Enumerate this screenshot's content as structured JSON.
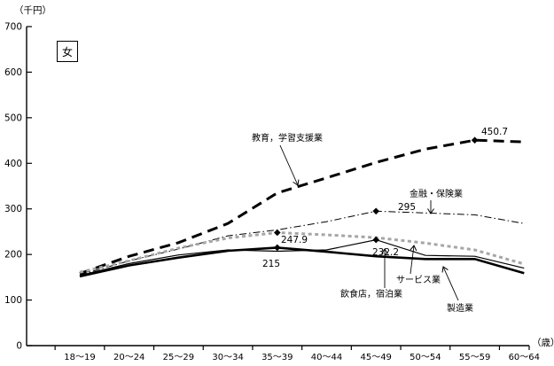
{
  "header": {
    "unit_label": "（千円）",
    "age_unit_label": "（歳）",
    "legend": "女"
  },
  "chart_data": {
    "type": "line",
    "title": "",
    "xlabel": "（歳）",
    "ylabel": "（千円）",
    "ylim": [
      0,
      700
    ],
    "yticks": [
      0,
      100,
      200,
      300,
      400,
      500,
      600,
      700
    ],
    "grid": false,
    "legend_position": "inline-annotations",
    "categories": [
      "18～19",
      "20～24",
      "25～29",
      "30～34",
      "35～39",
      "40～44",
      "45～49",
      "50～54",
      "55～59",
      "60～64"
    ],
    "series": [
      {
        "id": "education",
        "name": "教育，学習支援業",
        "style": "thick-dashed",
        "color": "#000000",
        "values": [
          158,
          196,
          226,
          268,
          335,
          368,
          402,
          431,
          450.7,
          447
        ],
        "peak": {
          "index": 8,
          "label": "450.7",
          "value": 450.7
        }
      },
      {
        "id": "finance",
        "name": "金融・保険業",
        "style": "dash-dot",
        "color": "#000000",
        "values": [
          155,
          186,
          212,
          241,
          254,
          272,
          295,
          291,
          287,
          268
        ],
        "peak": {
          "index": 6,
          "label": "295",
          "value": 295
        }
      },
      {
        "id": "services",
        "name": "サービス業",
        "style": "gray-dotted",
        "color": "#a6a6a6",
        "values": [
          161,
          186,
          214,
          236,
          247.9,
          243,
          237,
          225,
          210,
          179
        ],
        "peak": {
          "index": 4,
          "label": "247.9",
          "value": 247.9
        }
      },
      {
        "id": "restaurants",
        "name": "飲食店，宿泊業",
        "style": "thin-solid",
        "color": "#000000",
        "values": [
          154,
          180,
          199,
          210,
          207,
          210,
          232.2,
          198,
          196,
          170
        ],
        "peak": {
          "index": 6,
          "label": "232.2",
          "value": 232.2
        }
      },
      {
        "id": "manufacturing",
        "name": "製造業",
        "style": "thick-solid",
        "color": "#000000",
        "values": [
          152,
          176,
          193,
          208,
          215,
          206,
          196,
          190,
          190,
          159
        ],
        "peak": {
          "index": 4,
          "label": "215",
          "value": 215
        }
      }
    ]
  }
}
